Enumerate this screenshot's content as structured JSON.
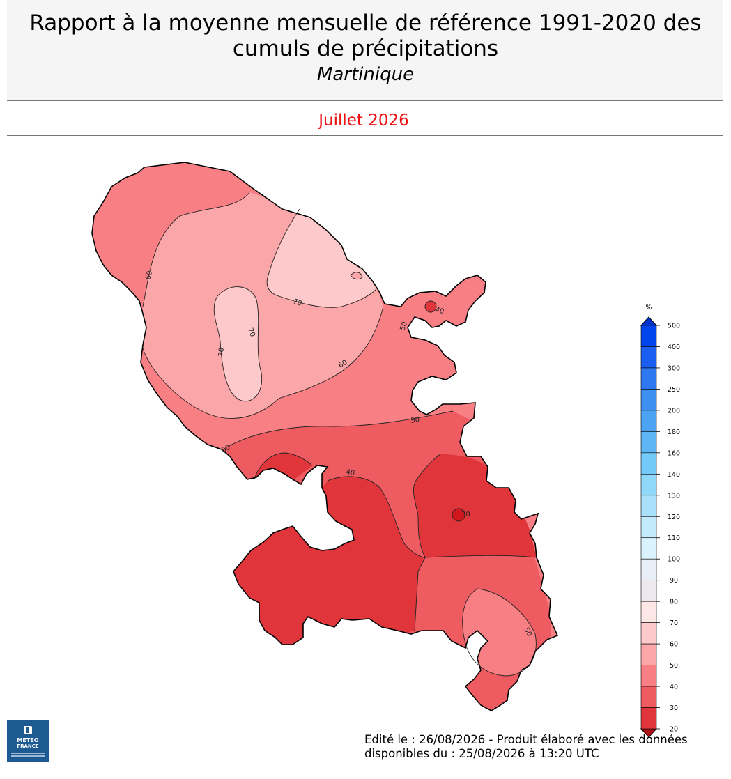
{
  "header": {
    "title_line1": "Rapport à la moyenne mensuelle de référence 1991-2020 des",
    "title_line2": "cumuls de précipitations",
    "region": "Martinique",
    "period": "Juillet 2026"
  },
  "map": {
    "contour_labels": [
      "70",
      "70",
      "70",
      "60",
      "60",
      "60",
      "50",
      "50",
      "50",
      "40",
      "40",
      "30"
    ],
    "zone_colors": {
      "20-30": "#d0171d",
      "30-40": "#e0363b",
      "40-50": "#ee5c61",
      "50-60": "#f88085",
      "60-70": "#fba6a9",
      "70-80": "#fdc9ca"
    }
  },
  "legend": {
    "unit": "%",
    "ticks": [
      "500",
      "400",
      "300",
      "250",
      "200",
      "180",
      "160",
      "140",
      "130",
      "120",
      "110",
      "100",
      "90",
      "80",
      "70",
      "60",
      "50",
      "40",
      "30",
      "20"
    ],
    "colors": [
      "#0044ee",
      "#1a5ff2",
      "#2e78f0",
      "#3d8ff0",
      "#4da3f3",
      "#5eb6f5",
      "#73caf8",
      "#8fd8fa",
      "#a8e1f9",
      "#c2eafa",
      "#daf2fb",
      "#e8eef6",
      "#ede8ed",
      "#fde6e6",
      "#fdc9ca",
      "#fba6a9",
      "#f88085",
      "#ee5c61",
      "#e0363b",
      "#d0171d"
    ],
    "arrow_top_color": "#0033cc",
    "arrow_bottom_color": "#b00f14"
  },
  "logo": {
    "line1": "METEO",
    "line2": "FRANCE"
  },
  "footer": {
    "line1": "Edité le : 26/08/2026 - Produit élaboré avec les données",
    "line2": "disponibles du : 25/08/2026 à 13:20 UTC"
  }
}
